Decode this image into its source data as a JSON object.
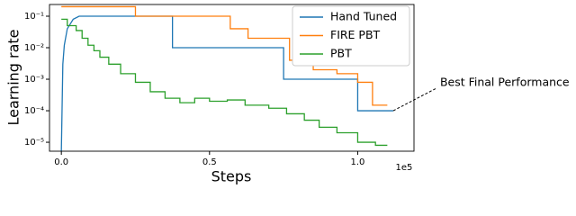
{
  "chart_data": {
    "type": "line",
    "xlabel": "Steps",
    "ylabel": "Learning rate",
    "x_offset_label": "1e5",
    "xlim": [
      -4000,
      119000
    ],
    "xticks": [
      {
        "value": 0,
        "label": "0.0"
      },
      {
        "value": 50000,
        "label": "0.5"
      },
      {
        "value": 100000,
        "label": "1.0"
      }
    ],
    "ylim": [
      5.2e-06,
      0.235
    ],
    "yscale": "log",
    "yticks": [
      {
        "value": 1e-05,
        "label": "10⁻⁵"
      },
      {
        "value": 0.0001,
        "label": "10⁻⁴"
      },
      {
        "value": 0.001,
        "label": "10⁻³"
      },
      {
        "value": 0.01,
        "label": "10⁻²"
      },
      {
        "value": 0.1,
        "label": "10⁻¹"
      }
    ],
    "grid": false,
    "legend": "upper right",
    "annotation": {
      "text": "Best Final Performance",
      "series": 0
    },
    "series": [
      {
        "name": "Hand Tuned",
        "color": "#1f77b4",
        "x": [
          0,
          500,
          1000,
          2000,
          4000,
          6000,
          37500,
          37500,
          75000,
          75000,
          100000,
          100000,
          112000
        ],
        "values": [
          5.2e-06,
          0.003,
          0.012,
          0.04,
          0.08,
          0.1,
          0.1,
          0.01,
          0.01,
          0.001,
          0.001,
          0.0001,
          0.0001
        ]
      },
      {
        "name": "FIRE PBT",
        "color": "#ff7f0e",
        "x": [
          0,
          25000,
          25000,
          57000,
          57000,
          63000,
          63000,
          77000,
          77000,
          85000,
          85000,
          93000,
          93000,
          100000,
          100000,
          105000,
          105000,
          110000
        ],
        "values": [
          0.2,
          0.2,
          0.1,
          0.1,
          0.04,
          0.04,
          0.02,
          0.02,
          0.004,
          0.004,
          0.002,
          0.002,
          0.0015,
          0.0015,
          0.0008,
          0.0008,
          0.00015,
          0.00015
        ]
      },
      {
        "name": "PBT",
        "color": "#2ca02c",
        "x": [
          0,
          2000,
          2000,
          5000,
          5000,
          7000,
          7000,
          9000,
          9000,
          11000,
          11000,
          13000,
          13000,
          16000,
          16000,
          20000,
          20000,
          25000,
          25000,
          30000,
          30000,
          35000,
          35000,
          40000,
          40000,
          45000,
          45000,
          50000,
          50000,
          56000,
          56000,
          62000,
          62000,
          70000,
          70000,
          76000,
          76000,
          82000,
          82000,
          87000,
          87000,
          93000,
          93000,
          100000,
          100000,
          106000,
          106000,
          110000
        ],
        "values": [
          0.08,
          0.08,
          0.05,
          0.05,
          0.035,
          0.035,
          0.02,
          0.02,
          0.012,
          0.012,
          0.008,
          0.008,
          0.005,
          0.005,
          0.003,
          0.003,
          0.0015,
          0.0015,
          0.0008,
          0.0008,
          0.0004,
          0.0004,
          0.00025,
          0.00025,
          0.00018,
          0.00018,
          0.00025,
          0.00025,
          0.0002,
          0.0002,
          0.00022,
          0.00022,
          0.00015,
          0.00015,
          0.00012,
          0.00012,
          8e-05,
          8e-05,
          5e-05,
          5e-05,
          3e-05,
          3e-05,
          2e-05,
          2e-05,
          1e-05,
          1e-05,
          8e-06,
          8e-06
        ]
      }
    ]
  }
}
